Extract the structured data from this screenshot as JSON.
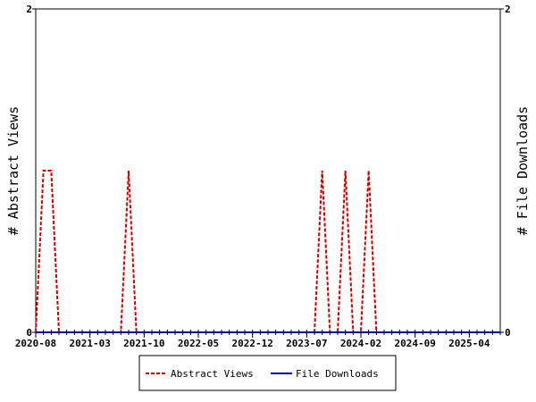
{
  "chart_data": {
    "type": "line",
    "x": [
      "2020-08",
      "2020-09",
      "2020-10",
      "2020-11",
      "2020-12",
      "2021-01",
      "2021-02",
      "2021-03",
      "2021-04",
      "2021-05",
      "2021-06",
      "2021-07",
      "2021-08",
      "2021-09",
      "2021-10",
      "2021-11",
      "2021-12",
      "2022-01",
      "2022-02",
      "2022-03",
      "2022-04",
      "2022-05",
      "2022-06",
      "2022-07",
      "2022-08",
      "2022-09",
      "2022-10",
      "2022-11",
      "2022-12",
      "2023-01",
      "2023-02",
      "2023-03",
      "2023-04",
      "2023-05",
      "2023-06",
      "2023-07",
      "2023-08",
      "2023-09",
      "2023-10",
      "2023-11",
      "2023-12",
      "2024-01",
      "2024-02",
      "2024-03",
      "2024-04",
      "2024-05",
      "2024-06",
      "2024-07",
      "2024-08",
      "2024-09",
      "2024-10",
      "2024-11",
      "2024-12",
      "2025-01",
      "2025-02",
      "2025-03",
      "2025-04",
      "2025-05",
      "2025-06",
      "2025-07",
      "2025-08"
    ],
    "series": [
      {
        "name": "Abstract Views",
        "color": "#cc0000",
        "dash": true,
        "values": [
          0,
          1,
          1,
          0,
          0,
          0,
          0,
          0,
          0,
          0,
          0,
          0,
          1,
          0,
          0,
          0,
          0,
          0,
          0,
          0,
          0,
          0,
          0,
          0,
          0,
          0,
          0,
          0,
          0,
          0,
          0,
          0,
          0,
          0,
          0,
          0,
          0,
          1,
          0,
          0,
          1,
          0,
          0,
          1,
          0,
          0,
          0,
          0,
          0,
          0,
          0,
          0,
          0,
          0,
          0,
          0,
          0,
          0,
          0,
          0,
          0
        ]
      },
      {
        "name": "File Downloads",
        "color": "#000099",
        "dash": false,
        "axis": "y2",
        "values": [
          0,
          0,
          0,
          0,
          0,
          0,
          0,
          0,
          0,
          0,
          0,
          0,
          0,
          0,
          0,
          0,
          0,
          0,
          0,
          0,
          0,
          0,
          0,
          0,
          0,
          0,
          0,
          0,
          0,
          0,
          0,
          0,
          0,
          0,
          0,
          0,
          0,
          0,
          0,
          0,
          0,
          0,
          0,
          0,
          0,
          0,
          0,
          0,
          0,
          0,
          0,
          0,
          0,
          0,
          0,
          0,
          0,
          0,
          0,
          0,
          0
        ]
      }
    ],
    "xticks": [
      "2020-08",
      "2021-03",
      "2021-10",
      "2022-05",
      "2022-12",
      "2023-07",
      "2024-02",
      "2024-09",
      "2025-04"
    ],
    "ylabel": "# Abstract Views",
    "y2label": "# File Downloads",
    "ylim": [
      0,
      2
    ],
    "yticks": [
      0,
      2
    ],
    "y2lim": [
      0,
      2
    ],
    "y2ticks": [
      0,
      2
    ]
  }
}
